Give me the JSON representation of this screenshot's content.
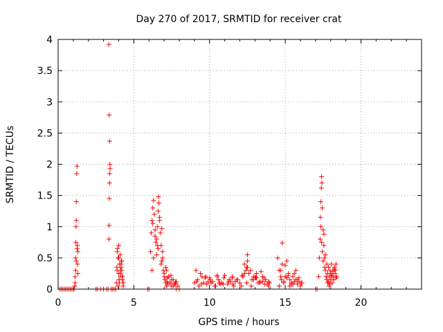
{
  "chart_data": {
    "type": "scatter",
    "title": "Day 270 of 2017, SRMTID for receiver crat",
    "xlabel": "GPS time / hours",
    "ylabel": "SRMTID / TECUs",
    "xlim": [
      0,
      24
    ],
    "ylim": [
      0,
      4
    ],
    "xticks": [
      0,
      5,
      10,
      15,
      20
    ],
    "xtick_labels": [
      "0",
      "5",
      "10",
      "15",
      "20"
    ],
    "yticks": [
      0,
      0.5,
      1,
      1.5,
      2,
      2.5,
      3,
      3.5,
      4
    ],
    "ytick_labels": [
      "0",
      "0.5",
      "1",
      "1.5",
      "2",
      "2.5",
      "3",
      "3.5",
      "4"
    ],
    "grid": true,
    "marker": "+",
    "color": "#ff0000",
    "series": [
      {
        "name": "SRMTID",
        "x": [
          0.1,
          0.2,
          0.3,
          0.4,
          0.5,
          0.6,
          0.7,
          0.8,
          0.9,
          1.0,
          1.05,
          1.1,
          1.12,
          1.15,
          1.17,
          1.18,
          1.2,
          1.2,
          1.22,
          1.25,
          1.27,
          1.3,
          1.12,
          1.15,
          1.2,
          1.25,
          1.28,
          1.3,
          2.5,
          2.6,
          2.8,
          3.0,
          3.2,
          3.3,
          3.35,
          3.36,
          3.38,
          3.39,
          3.4,
          3.42,
          3.4,
          3.37,
          3.35,
          3.43,
          3.5,
          3.6,
          3.7,
          3.8,
          3.85,
          3.9,
          3.95,
          4.0,
          4.05,
          4.1,
          4.15,
          4.2,
          4.25,
          4.3,
          3.9,
          4.0,
          4.1,
          4.2,
          3.95,
          4.05,
          4.15,
          4.25,
          3.88,
          4.02,
          4.18,
          4.3,
          4.0,
          4.1,
          4.22,
          3.92,
          4.12,
          4.28,
          5.9,
          6.0,
          6.1,
          6.15,
          6.2,
          6.25,
          6.3,
          6.35,
          6.4,
          6.45,
          6.5,
          6.55,
          6.6,
          6.62,
          6.65,
          6.7,
          6.75,
          6.8,
          6.85,
          6.9,
          6.95,
          7.0,
          7.05,
          7.1,
          7.15,
          7.2,
          7.25,
          7.3,
          7.4,
          7.5,
          7.6,
          7.7,
          7.8,
          7.9,
          8.0,
          6.2,
          6.3,
          6.5,
          6.6,
          6.8,
          7.0,
          7.2,
          7.4,
          7.6,
          7.8,
          6.4,
          6.7,
          6.9,
          7.1,
          7.3,
          7.5,
          7.7,
          6.25,
          6.55,
          6.85,
          7.15,
          7.45,
          7.75,
          9.0,
          9.2,
          9.4,
          9.5,
          9.6,
          9.8,
          10.0,
          10.2,
          10.4,
          10.5,
          10.6,
          10.8,
          11.0,
          11.2,
          11.4,
          11.5,
          11.6,
          11.8,
          12.0,
          12.2,
          12.4,
          12.5,
          12.6,
          12.8,
          13.0,
          13.2,
          13.4,
          13.5,
          13.6,
          13.8,
          9.3,
          9.7,
          10.1,
          10.5,
          10.9,
          11.3,
          11.7,
          12.1,
          12.5,
          12.9,
          13.3,
          13.7,
          9.1,
          9.9,
          10.7,
          11.5,
          12.3,
          13.1,
          13.9,
          9.15,
          9.45,
          9.75,
          10.05,
          10.35,
          10.65,
          10.95,
          11.25,
          11.55,
          11.85,
          12.15,
          12.45,
          12.75,
          13.05,
          13.35,
          13.65,
          13.95,
          12.3,
          12.5,
          12.7,
          13.1,
          13.5,
          13.9,
          12.45,
          12.9,
          13.3,
          14.5,
          14.6,
          14.7,
          14.75,
          14.8,
          14.9,
          15.0,
          15.1,
          15.2,
          15.3,
          15.4,
          15.5,
          15.6,
          15.7,
          15.8,
          15.9,
          16.0,
          16.1,
          14.6,
          14.9,
          15.2,
          15.5,
          15.8,
          16.05,
          14.7,
          15.0,
          15.3,
          15.6,
          15.9,
          14.8,
          15.1,
          15.4,
          15.7,
          16.0,
          17.0,
          17.1,
          17.2,
          17.25,
          17.3,
          17.32,
          17.35,
          17.38,
          17.4,
          17.42,
          17.45,
          17.5,
          17.55,
          17.6,
          17.65,
          17.7,
          17.75,
          17.8,
          17.85,
          17.9,
          17.95,
          18.0,
          18.05,
          18.1,
          18.15,
          18.2,
          18.25,
          18.3,
          18.35,
          18.4,
          17.35,
          17.4,
          17.45,
          17.5,
          17.6,
          17.7,
          17.8,
          17.9,
          18.0,
          18.1,
          18.2,
          18.3,
          17.55,
          17.75,
          17.95,
          18.15,
          18.35,
          17.65,
          17.85,
          18.05,
          18.25
        ],
        "y": [
          0,
          0,
          0,
          0,
          0,
          0,
          0,
          0,
          0,
          0,
          0,
          0.05,
          0.2,
          0.5,
          0.75,
          1.0,
          1.1,
          1.4,
          1.85,
          1.97,
          0.7,
          0.6,
          0.1,
          0.3,
          0.45,
          0.65,
          0.4,
          0.25,
          0,
          0,
          0,
          0,
          0,
          0,
          0.8,
          1.02,
          1.45,
          1.7,
          1.85,
          2.0,
          2.37,
          2.79,
          3.92,
          1.93,
          0,
          0,
          0,
          0,
          0.1,
          0.3,
          0.5,
          0.7,
          0.4,
          0.2,
          0.35,
          0.45,
          0.15,
          0.05,
          0.6,
          0.25,
          0.55,
          0.3,
          0.05,
          0.1,
          0.4,
          0.2,
          0.35,
          0.15,
          0.45,
          0.1,
          0.5,
          0.3,
          0.2,
          0.65,
          0.25,
          0.1,
          0,
          0,
          0.6,
          0.9,
          1.1,
          1.3,
          1.42,
          1.2,
          0.85,
          0.75,
          0.55,
          1.0,
          1.25,
          1.48,
          1.38,
          1.1,
          0.9,
          0.7,
          0.97,
          0.5,
          0.3,
          0.2,
          0.15,
          0.1,
          0.05,
          0.12,
          0.08,
          0.2,
          0.1,
          0.05,
          0.15,
          0.08,
          0,
          0.05,
          0,
          0.3,
          0.5,
          0.8,
          0.65,
          0.4,
          0.25,
          0.18,
          0.1,
          0.05,
          0.12,
          0.95,
          1.15,
          0.6,
          0.35,
          0.2,
          0.15,
          0.08,
          1.05,
          0.7,
          0.45,
          0.3,
          0.22,
          0.1,
          0.1,
          0.15,
          0.25,
          0.2,
          0.1,
          0.08,
          0.18,
          0.12,
          0.05,
          0.2,
          0.15,
          0.1,
          0.22,
          0.08,
          0.12,
          0.18,
          0.05,
          0.15,
          0.1,
          0.2,
          0.3,
          0.45,
          0.25,
          0.15,
          0.2,
          0.1,
          0.28,
          0.12,
          0.18,
          0.08,
          0.05,
          0.18,
          0.1,
          0.22,
          0.08,
          0.15,
          0.12,
          0.05,
          0.35,
          0.2,
          0.1,
          0.15,
          0.3,
          0.12,
          0.08,
          0.2,
          0.25,
          0.18,
          0.05,
          0.12,
          0.08,
          0.2,
          0.15,
          0.05,
          0.1,
          0.18,
          0.12,
          0.08,
          0.15,
          0.22,
          0.1,
          0.05,
          0.18,
          0.12,
          0.08,
          0.1,
          0.4,
          0.55,
          0.3,
          0.25,
          0.2,
          0.12,
          0.35,
          0.15,
          0.1,
          0.5,
          0.3,
          0.2,
          0.15,
          0.74,
          0.1,
          0.38,
          0.45,
          0.25,
          0.15,
          0.1,
          0.2,
          0.12,
          0.3,
          0.08,
          0.18,
          0.05,
          0.1,
          0.05,
          0.12,
          0.22,
          0.08,
          0.15,
          0.1,
          0.3,
          0.2,
          0.05,
          0.25,
          0.12,
          0.4,
          0.18,
          0.08,
          0.15,
          0.05,
          0,
          0,
          0.2,
          0.5,
          0.8,
          1.15,
          1.4,
          1.62,
          1.8,
          1.7,
          1.3,
          0.95,
          0.7,
          0.5,
          0.3,
          0.2,
          0.15,
          0.25,
          0.35,
          0.2,
          0.3,
          0.25,
          0.4,
          0.2,
          0.3,
          0.15,
          0.35,
          0.25,
          0.4,
          0.2,
          1.0,
          0.75,
          0.6,
          0.45,
          0.35,
          0.2,
          0.1,
          0.05,
          0.15,
          0.1,
          0.2,
          0.3,
          0.88,
          0.4,
          0.08,
          0.28,
          0.18,
          0.55,
          0.12,
          0.22,
          0.32
        ]
      }
    ]
  }
}
